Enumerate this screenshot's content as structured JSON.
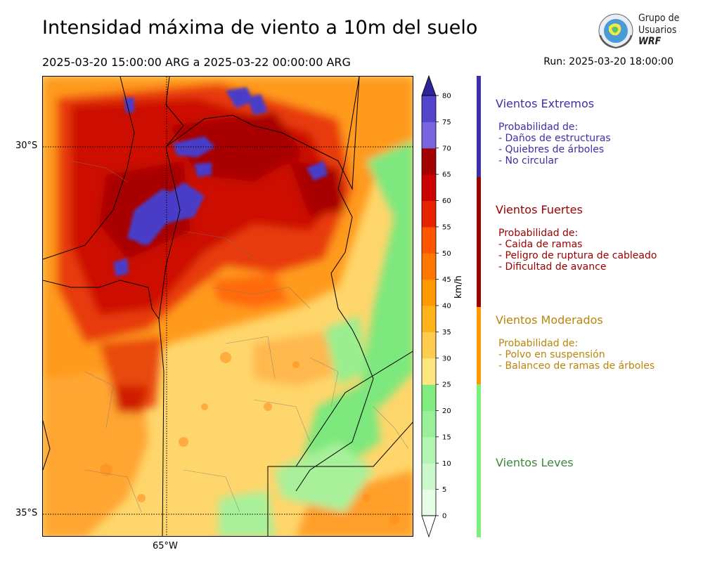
{
  "title": "Intensidad máxima de viento a 10m del suelo",
  "period": "2025-03-20 15:00:00 ARG  a  2025-03-22 00:00:00 ARG",
  "run": "Run: 2025-03-20 18:00:00",
  "logo": {
    "line1": "Grupo de",
    "line2": "Usuarios",
    "line3": "WRF"
  },
  "axes": {
    "lat_labels": [
      "30°S",
      "35°S"
    ],
    "lon_labels": [
      "65°W"
    ]
  },
  "colorbar": {
    "unit": "km/h",
    "ticks": [
      "0",
      "5",
      "10",
      "15",
      "20",
      "25",
      "30",
      "35",
      "40",
      "45",
      "50",
      "55",
      "60",
      "65",
      "70",
      "75",
      "80"
    ],
    "colors": [
      "#e6fde6",
      "#ccf9cc",
      "#b3f5b3",
      "#99f099",
      "#80ec80",
      "#ffe680",
      "#ffcc4d",
      "#ffb31a",
      "#ff9900",
      "#ff7700",
      "#ff5500",
      "#e62200",
      "#cc0000",
      "#a30000",
      "#7766dd",
      "#5544cc",
      "#3a2fb0"
    ],
    "above_color": "#2e2399"
  },
  "categories": [
    {
      "title": "Vientos Extremos",
      "color": "#3d2fa6",
      "lines": [
        "Probabilidad de:",
        "- Daños de estructuras",
        "- Quiebres de árboles",
        "- No circular"
      ]
    },
    {
      "title": "Vientos Fuertes",
      "color": "#990000",
      "lines": [
        "Probabilidad de:",
        "- Caida de ramas",
        "- Peligro de ruptura de cableado",
        "- Dificultad de avance"
      ]
    },
    {
      "title": "Vientos Moderados",
      "color": "#b8860b",
      "lines": [
        "Probabilidad de:",
        "- Polvo en suspensión",
        "- Balanceo de ramas de árboles"
      ]
    },
    {
      "title": "Vientos Leves",
      "color": "#3a8a3a",
      "lines": []
    }
  ],
  "strip_colors": [
    "#3d2fa6",
    "#990000",
    "#ff9900",
    "#7cf07c"
  ]
}
